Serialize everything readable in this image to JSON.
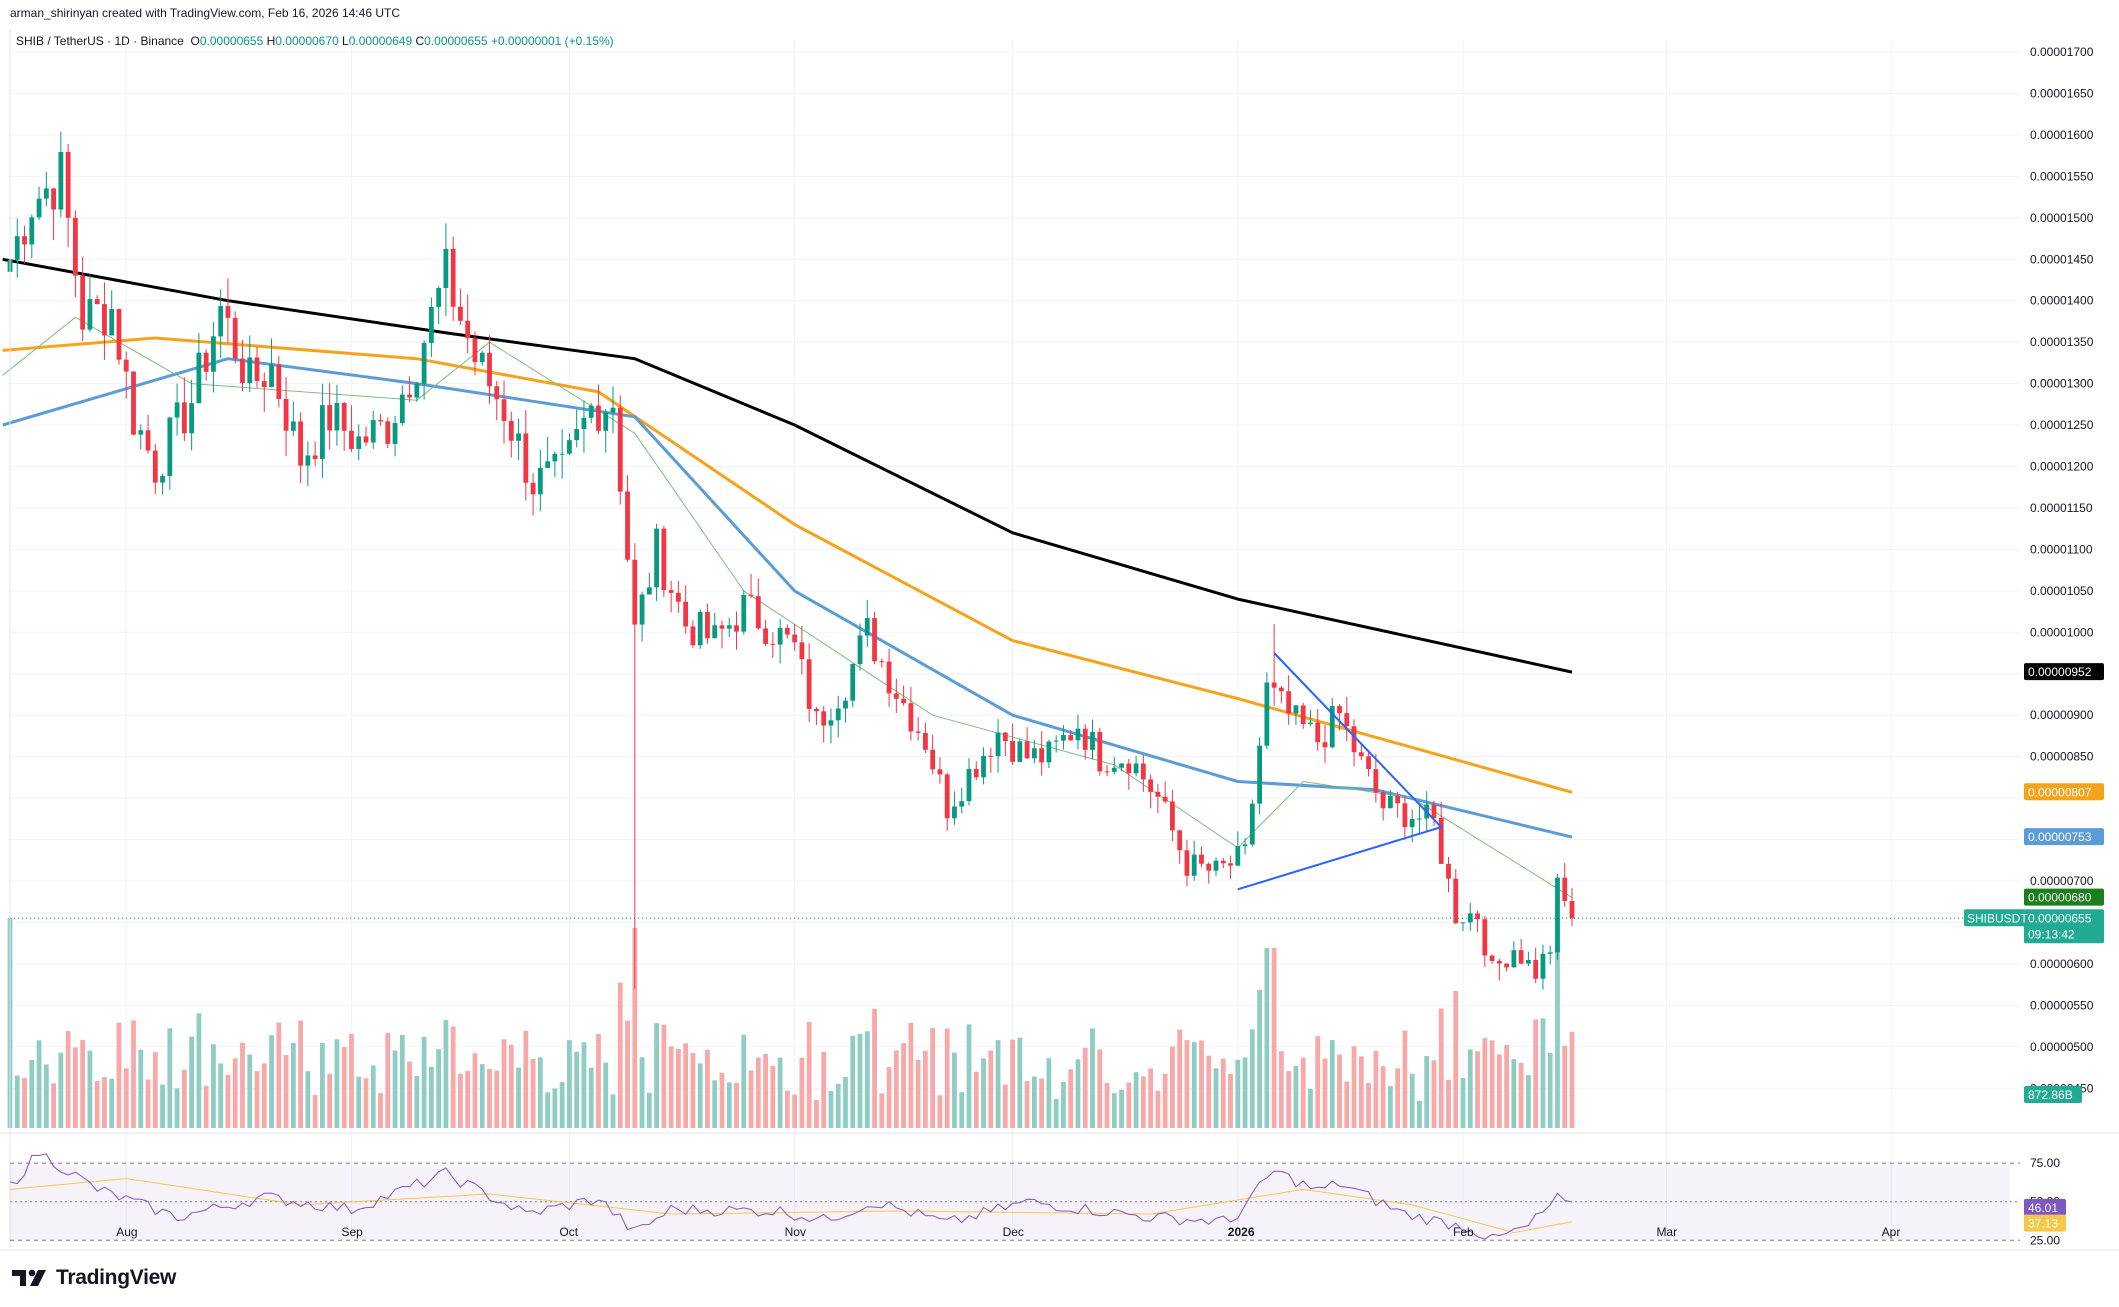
{
  "header": {
    "credit": "arman_shirinyan created with TradingView.com, Feb 16, 2026 14:46 UTC"
  },
  "symbol": {
    "name": "SHIB / TetherUS · 1D · Binance",
    "o_label": "O",
    "o": "0.00000655",
    "h_label": "H",
    "h": "0.00000670",
    "l_label": "L",
    "l": "0.00000649",
    "c_label": "C",
    "c": "0.00000655",
    "change": "+0.00000001 (+0.15%)"
  },
  "price_axis": {
    "ticks": [
      "0.00001700",
      "0.00001650",
      "0.00001600",
      "0.00001550",
      "0.00001500",
      "0.00001450",
      "0.00001400",
      "0.00001350",
      "0.00001300",
      "0.00001250",
      "0.00001200",
      "0.00001150",
      "0.00001100",
      "0.00001050",
      "0.00001000",
      "0.00000900",
      "0.00000850",
      "0.00000700",
      "0.00000600",
      "0.00000550",
      "0.00000500",
      "0.00000450"
    ]
  },
  "labels": {
    "ma200": "0.00000952",
    "ma100": "0.00000807",
    "ma50": "0.00000753",
    "ma20": "0.00000680",
    "ticker": "SHIBUSDT",
    "last": "0.00000655",
    "countdown": "09:13:42",
    "volume": "872.86B",
    "rsi": "46.01",
    "rsi_ma": "37.13"
  },
  "rsi_axis": {
    "ticks": [
      "75.00",
      "50.00",
      "25.00"
    ]
  },
  "time_axis": [
    {
      "label": "Aug",
      "bold": false
    },
    {
      "label": "Sep",
      "bold": false
    },
    {
      "label": "Oct",
      "bold": false
    },
    {
      "label": "Nov",
      "bold": false
    },
    {
      "label": "Dec",
      "bold": false
    },
    {
      "label": "2026",
      "bold": true
    },
    {
      "label": "Feb",
      "bold": false
    },
    {
      "label": "Mar",
      "bold": false
    },
    {
      "label": "Apr",
      "bold": false
    }
  ],
  "colors": {
    "up": "#089981",
    "down": "#f23645",
    "vol_up": "#8fcdc3",
    "vol_down": "#f7a9a9",
    "ma200": "#000000",
    "ma100": "#f7a21b",
    "ma50": "#5b9cd6",
    "ma20": "#7cbf7c",
    "triangle": "#2962ff",
    "rsi": "#7e57c2",
    "rsi_ma": "#f5c84c"
  },
  "brand": {
    "name": "TradingView"
  },
  "chart_data": {
    "type": "candlestick",
    "interval": "1D",
    "ylim": [
      4.3e-06,
      1.72e-05
    ],
    "anchors": [
      {
        "date": "2025-07-16",
        "price": 1.45e-05
      },
      {
        "date": "2025-07-19",
        "price": 1.52e-05
      },
      {
        "date": "2025-07-23",
        "price": 1.55e-05
      },
      {
        "date": "2025-07-26",
        "price": 1.38e-05
      },
      {
        "date": "2025-07-30",
        "price": 1.39e-05
      },
      {
        "date": "2025-08-02",
        "price": 1.26e-05
      },
      {
        "date": "2025-08-05",
        "price": 1.2e-05
      },
      {
        "date": "2025-08-10",
        "price": 1.28e-05
      },
      {
        "date": "2025-08-14",
        "price": 1.39e-05
      },
      {
        "date": "2025-08-18",
        "price": 1.3e-05
      },
      {
        "date": "2025-08-21",
        "price": 1.32e-05
      },
      {
        "date": "2025-08-25",
        "price": 1.21e-05
      },
      {
        "date": "2025-08-29",
        "price": 1.26e-05
      },
      {
        "date": "2025-09-02",
        "price": 1.23e-05
      },
      {
        "date": "2025-09-06",
        "price": 1.25e-05
      },
      {
        "date": "2025-09-10",
        "price": 1.33e-05
      },
      {
        "date": "2025-09-14",
        "price": 1.43e-05
      },
      {
        "date": "2025-09-18",
        "price": 1.33e-05
      },
      {
        "date": "2025-09-22",
        "price": 1.27e-05
      },
      {
        "date": "2025-09-26",
        "price": 1.18e-05
      },
      {
        "date": "2025-09-30",
        "price": 1.19e-05
      },
      {
        "date": "2025-10-04",
        "price": 1.27e-05
      },
      {
        "date": "2025-10-07",
        "price": 1.28e-05
      },
      {
        "date": "2025-10-10",
        "price": 1e-05
      },
      {
        "date": "2025-10-13",
        "price": 1.1e-05
      },
      {
        "date": "2025-10-17",
        "price": 1.01e-05
      },
      {
        "date": "2025-10-21",
        "price": 9.9e-06
      },
      {
        "date": "2025-10-25",
        "price": 1.03e-05
      },
      {
        "date": "2025-10-28",
        "price": 1.01e-05
      },
      {
        "date": "2025-11-01",
        "price": 9.8e-06
      },
      {
        "date": "2025-11-04",
        "price": 8.9e-06
      },
      {
        "date": "2025-11-08",
        "price": 9.4e-06
      },
      {
        "date": "2025-11-11",
        "price": 1e-05
      },
      {
        "date": "2025-11-15",
        "price": 9.3e-06
      },
      {
        "date": "2025-11-19",
        "price": 8.7e-06
      },
      {
        "date": "2025-11-22",
        "price": 7.9e-06
      },
      {
        "date": "2025-11-25",
        "price": 8.3e-06
      },
      {
        "date": "2025-11-29",
        "price": 8.8e-06
      },
      {
        "date": "2025-12-03",
        "price": 8.5e-06
      },
      {
        "date": "2025-12-06",
        "price": 8.5e-06
      },
      {
        "date": "2025-12-10",
        "price": 8.9e-06
      },
      {
        "date": "2025-12-13",
        "price": 8.5e-06
      },
      {
        "date": "2025-12-17",
        "price": 8.5e-06
      },
      {
        "date": "2025-12-21",
        "price": 8e-06
      },
      {
        "date": "2025-12-25",
        "price": 7.2e-06
      },
      {
        "date": "2025-12-29",
        "price": 7.1e-06
      },
      {
        "date": "2026-01-02",
        "price": 7.3e-06
      },
      {
        "date": "2026-01-05",
        "price": 9.3e-06
      },
      {
        "date": "2026-01-09",
        "price": 8.9e-06
      },
      {
        "date": "2026-01-12",
        "price": 8.7e-06
      },
      {
        "date": "2026-01-15",
        "price": 9e-06
      },
      {
        "date": "2026-01-18",
        "price": 8.4e-06
      },
      {
        "date": "2026-01-21",
        "price": 7.9e-06
      },
      {
        "date": "2026-01-25",
        "price": 7.8e-06
      },
      {
        "date": "2026-01-28",
        "price": 7.7e-06
      },
      {
        "date": "2026-01-31",
        "price": 6.6e-06
      },
      {
        "date": "2026-02-03",
        "price": 6.6e-06
      },
      {
        "date": "2026-02-05",
        "price": 5.9e-06
      },
      {
        "date": "2026-02-08",
        "price": 6.2e-06
      },
      {
        "date": "2026-02-11",
        "price": 5.9e-06
      },
      {
        "date": "2026-02-13",
        "price": 6.2e-06
      },
      {
        "date": "2026-02-14",
        "price": 6.9e-06
      },
      {
        "date": "2026-02-16",
        "price": 6.55e-06
      }
    ],
    "moving_averages": [
      {
        "anchors": [
          {
            "date": "2025-07-15",
            "price": 1.45e-05
          },
          {
            "date": "2025-08-15",
            "price": 1.4e-05
          },
          {
            "date": "2025-09-15",
            "price": 1.36e-05
          },
          {
            "date": "2025-10-10",
            "price": 1.33e-05
          },
          {
            "date": "2025-11-01",
            "price": 1.25e-05
          },
          {
            "date": "2025-12-01",
            "price": 1.12e-05
          },
          {
            "date": "2026-01-01",
            "price": 1.04e-05
          },
          {
            "date": "2026-02-16",
            "price": 9.52e-06
          }
        ]
      },
      {
        "anchors": [
          {
            "date": "2025-07-15",
            "price": 1.34e-05
          },
          {
            "date": "2025-08-05",
            "price": 1.355e-05
          },
          {
            "date": "2025-09-10",
            "price": 1.33e-05
          },
          {
            "date": "2025-10-05",
            "price": 1.29e-05
          },
          {
            "date": "2025-11-01",
            "price": 1.13e-05
          },
          {
            "date": "2025-12-01",
            "price": 9.9e-06
          },
          {
            "date": "2026-01-01",
            "price": 9.2e-06
          },
          {
            "date": "2026-02-16",
            "price": 8.07e-06
          }
        ]
      },
      {
        "anchors": [
          {
            "date": "2025-07-15",
            "price": 1.25e-05
          },
          {
            "date": "2025-08-15",
            "price": 1.33e-05
          },
          {
            "date": "2025-09-10",
            "price": 1.3e-05
          },
          {
            "date": "2025-10-10",
            "price": 1.26e-05
          },
          {
            "date": "2025-11-01",
            "price": 1.05e-05
          },
          {
            "date": "2025-12-01",
            "price": 9e-06
          },
          {
            "date": "2026-01-01",
            "price": 8.2e-06
          },
          {
            "date": "2026-01-20",
            "price": 8.1e-06
          },
          {
            "date": "2026-02-16",
            "price": 7.53e-06
          }
        ]
      },
      {
        "anchors": [
          {
            "date": "2025-07-15",
            "price": 1.31e-05
          },
          {
            "date": "2025-07-25",
            "price": 1.38e-05
          },
          {
            "date": "2025-08-10",
            "price": 1.3e-05
          },
          {
            "date": "2025-09-10",
            "price": 1.28e-05
          },
          {
            "date": "2025-09-20",
            "price": 1.35e-05
          },
          {
            "date": "2025-10-10",
            "price": 1.24e-05
          },
          {
            "date": "2025-10-25",
            "price": 1.05e-05
          },
          {
            "date": "2025-11-20",
            "price": 9e-06
          },
          {
            "date": "2025-12-15",
            "price": 8.4e-06
          },
          {
            "date": "2026-01-01",
            "price": 7.4e-06
          },
          {
            "date": "2026-01-10",
            "price": 8.2e-06
          },
          {
            "date": "2026-01-25",
            "price": 8e-06
          },
          {
            "date": "2026-02-16",
            "price": 6.8e-06
          }
        ]
      }
    ],
    "triangle_pattern": [
      {
        "date": "2026-01-06",
        "price": 9.75e-06
      },
      {
        "date": "2026-01-29",
        "price": 7.65e-06
      },
      {
        "date": "2026-01-01",
        "price": 6.9e-06
      }
    ],
    "rsi": {
      "ylim": [
        20,
        90
      ],
      "rsi_anchors": [
        {
          "date": "2025-07-16",
          "v": 60
        },
        {
          "date": "2025-07-20",
          "v": 82
        },
        {
          "date": "2025-07-28",
          "v": 58
        },
        {
          "date": "2025-08-08",
          "v": 40
        },
        {
          "date": "2025-08-20",
          "v": 53
        },
        {
          "date": "2025-09-01",
          "v": 45
        },
        {
          "date": "2025-09-14",
          "v": 68
        },
        {
          "date": "2025-09-25",
          "v": 42
        },
        {
          "date": "2025-10-05",
          "v": 52
        },
        {
          "date": "2025-10-10",
          "v": 30
        },
        {
          "date": "2025-10-15",
          "v": 45
        },
        {
          "date": "2025-10-30",
          "v": 44
        },
        {
          "date": "2025-11-05",
          "v": 38
        },
        {
          "date": "2025-11-12",
          "v": 50
        },
        {
          "date": "2025-11-22",
          "v": 36
        },
        {
          "date": "2025-12-03",
          "v": 50
        },
        {
          "date": "2025-12-20",
          "v": 40
        },
        {
          "date": "2025-12-31",
          "v": 37
        },
        {
          "date": "2026-01-06",
          "v": 70
        },
        {
          "date": "2026-01-12",
          "v": 57
        },
        {
          "date": "2026-01-15",
          "v": 62
        },
        {
          "date": "2026-01-24",
          "v": 42
        },
        {
          "date": "2026-02-02",
          "v": 33
        },
        {
          "date": "2026-02-05",
          "v": 25
        },
        {
          "date": "2026-02-10",
          "v": 34
        },
        {
          "date": "2026-02-14",
          "v": 52
        },
        {
          "date": "2026-02-16",
          "v": 46
        }
      ],
      "rsi_ma_anchors": [
        {
          "date": "2025-07-16",
          "v": 58
        },
        {
          "date": "2025-08-01",
          "v": 65
        },
        {
          "date": "2025-08-25",
          "v": 48
        },
        {
          "date": "2025-09-20",
          "v": 55
        },
        {
          "date": "2025-10-15",
          "v": 42
        },
        {
          "date": "2025-11-15",
          "v": 44
        },
        {
          "date": "2025-12-20",
          "v": 42
        },
        {
          "date": "2026-01-10",
          "v": 58
        },
        {
          "date": "2026-01-25",
          "v": 48
        },
        {
          "date": "2026-02-08",
          "v": 30
        },
        {
          "date": "2026-02-16",
          "v": 37
        }
      ]
    }
  }
}
